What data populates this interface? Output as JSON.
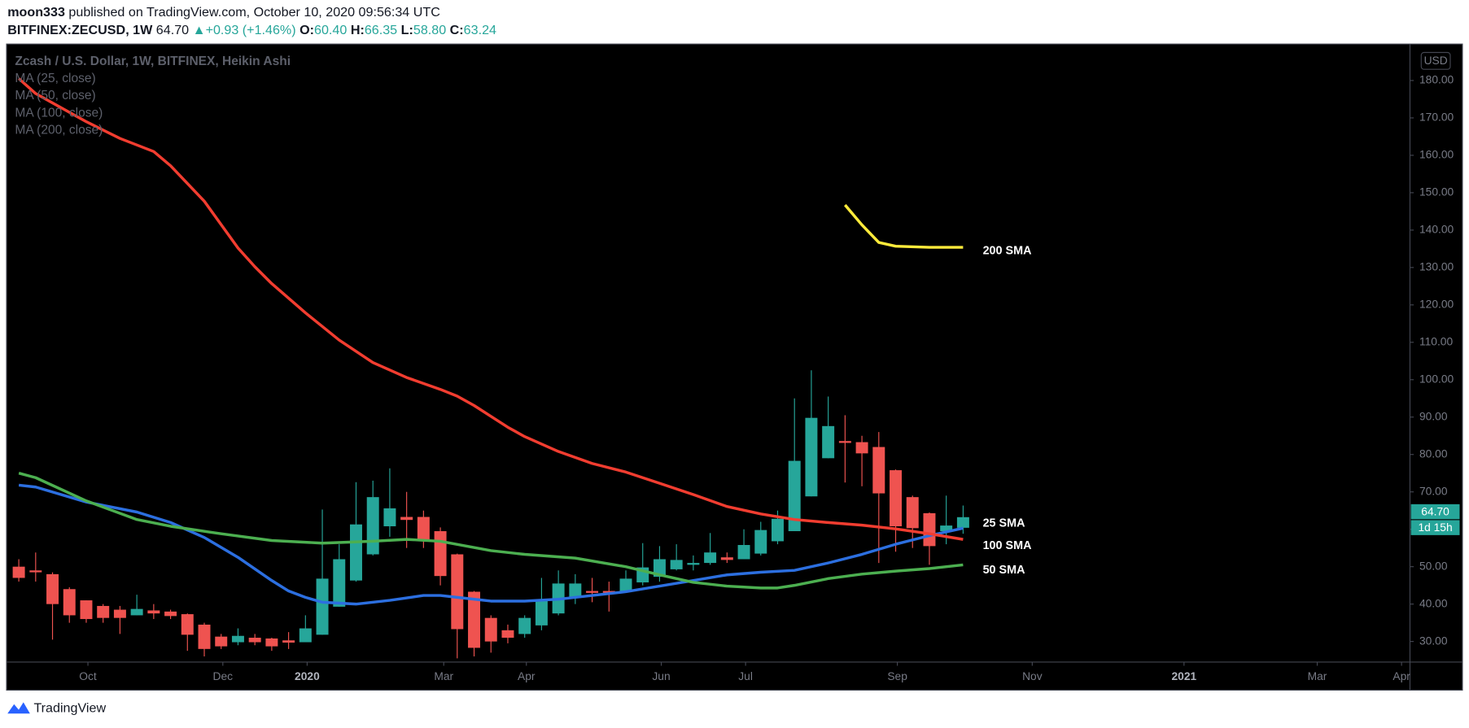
{
  "header": {
    "user": "moon333",
    "published": "published on TradingView.com, October 10, 2020 09:56:34 UTC",
    "symbol": "BITFINEX:ZECUSD, 1W",
    "price": "64.70",
    "change": "+0.93 (+1.46%)",
    "ohlc": [
      {
        "label": "O:",
        "value": "60.40"
      },
      {
        "label": "H:",
        "value": "66.35"
      },
      {
        "label": "L:",
        "value": "58.80"
      },
      {
        "label": "C:",
        "value": "63.24"
      }
    ]
  },
  "footer": {
    "brand": "TradingView"
  },
  "chart_data": {
    "type": "candlestick",
    "title": "Zcash / U.S. Dollar, 1W, BITFINEX, Heikin Ashi",
    "y_unit": "USD",
    "up_color": "#26a69a",
    "down_color": "#ef5350",
    "open": [
      50,
      49,
      48,
      44,
      41,
      39.5,
      38.5,
      37,
      38.3,
      38,
      37.3,
      34.5,
      31.3,
      29.8,
      31,
      30.8,
      30.3,
      29.8,
      31.8,
      39.3,
      46.3,
      53.3,
      60.8,
      63.3,
      63.3,
      59.5,
      53.3,
      43.3,
      36.3,
      33,
      32,
      34.3,
      37.5,
      41.8,
      43.5,
      43.5,
      43.5,
      45.8,
      47.3,
      49.3,
      50.5,
      51,
      52.5,
      52,
      53.5,
      56.8,
      59.5,
      68.8,
      79,
      83.6,
      83.3,
      82,
      75.8,
      68.6,
      64.3,
      59.5,
      60.4
    ],
    "high": [
      52,
      53.8,
      48.5,
      44.5,
      41,
      40,
      39.5,
      42.5,
      40,
      38.5,
      37.5,
      35,
      32,
      33.5,
      32,
      31,
      32.5,
      37,
      65.3,
      56,
      72.6,
      73,
      76.3,
      70,
      65,
      60.5,
      53.5,
      43.5,
      37,
      34.5,
      37,
      47,
      49,
      48,
      47,
      46,
      49,
      56.3,
      55.5,
      56,
      53,
      59,
      53.8,
      60,
      62,
      65,
      95,
      102.5,
      95.5,
      90.5,
      85,
      86,
      76,
      69,
      64.5,
      69,
      66.35
    ],
    "low": [
      46,
      46,
      30.5,
      35,
      35,
      35,
      32,
      37,
      36,
      36,
      27.5,
      26,
      28,
      29,
      29,
      27.5,
      28,
      29.8,
      31.8,
      39.3,
      46,
      53,
      58,
      55,
      55,
      45,
      25.5,
      26,
      27,
      29.5,
      31,
      33,
      37,
      40,
      40.5,
      38,
      43,
      45,
      46,
      49,
      49,
      50.5,
      51,
      52,
      53,
      56,
      59.5,
      68.8,
      79,
      72.5,
      71.5,
      51,
      54,
      55,
      50.5,
      56,
      58.8
    ],
    "close": [
      47,
      48.5,
      40,
      37,
      36,
      36.3,
      36.3,
      38.7,
      37.5,
      36.8,
      31.8,
      28,
      28.7,
      31.5,
      29.8,
      28.7,
      29.7,
      33.5,
      46.8,
      52,
      61.3,
      68.6,
      65.6,
      62.5,
      56.8,
      47.5,
      33.3,
      28.3,
      30,
      31,
      36.3,
      41.3,
      45.5,
      45.5,
      43,
      43,
      46.8,
      49.8,
      52,
      51.8,
      51,
      53.8,
      51.8,
      55.8,
      59.8,
      62.8,
      78.3,
      89.8,
      87.6,
      83.1,
      80.3,
      69.6,
      60.8,
      60.3,
      55.5,
      61,
      63.24
    ],
    "series": [
      {
        "name": "MA (25, close)",
        "label": "25 SMA",
        "color": "#2c6fe0",
        "x": [
          0,
          1,
          4,
          7,
          9,
          11,
          13,
          15,
          16,
          17,
          18,
          20,
          22,
          24,
          25,
          26,
          28,
          30,
          32,
          34,
          36,
          38,
          40,
          42,
          44,
          46,
          48,
          50,
          52,
          54,
          56
        ],
        "values": [
          71.8,
          71.3,
          67.3,
          64.6,
          61.8,
          57.8,
          52.5,
          46.3,
          43.5,
          41.8,
          40.5,
          40,
          41,
          42.3,
          42.3,
          41.8,
          40.8,
          40.8,
          41.3,
          42.3,
          43.3,
          44.8,
          46.3,
          47.8,
          48.5,
          49,
          51,
          53.3,
          56,
          58.3,
          60.3
        ]
      },
      {
        "name": "MA (50, close)",
        "label": "50 SMA",
        "color": "#4caf50",
        "x": [
          0,
          1,
          4,
          7,
          9,
          12,
          15,
          18,
          21,
          23,
          25,
          28,
          30,
          33,
          36,
          38,
          40,
          42,
          44,
          45,
          46,
          48,
          50,
          52,
          54,
          56
        ],
        "values": [
          75,
          73.8,
          67.6,
          62.6,
          60.8,
          58.8,
          57,
          56.3,
          56.8,
          57.3,
          56.8,
          54.3,
          53.3,
          52.3,
          50,
          47.8,
          45.8,
          44.8,
          44.3,
          44.3,
          45,
          46.8,
          48,
          48.8,
          49.5,
          50.5
        ]
      },
      {
        "name": "MA (100, close)",
        "label": "100 SMA",
        "color": "#f23d30",
        "x": [
          0,
          1,
          4,
          6,
          8,
          9,
          11,
          13,
          14,
          15,
          17,
          19,
          21,
          23,
          25,
          26,
          27,
          29,
          30,
          32,
          34,
          36,
          38,
          40,
          42,
          44,
          46,
          48,
          50,
          52,
          54,
          56
        ],
        "values": [
          180.5,
          176.5,
          169,
          164.5,
          161,
          157.2,
          147.7,
          135.2,
          130.2,
          125.7,
          117.9,
          110.6,
          104.6,
          100.6,
          97.4,
          95.6,
          93.1,
          87.3,
          84.8,
          80.8,
          77.6,
          75.3,
          72.3,
          69.3,
          66.1,
          64.1,
          62.6,
          61.8,
          61.1,
          60.1,
          58.8,
          57.3
        ]
      },
      {
        "name": "MA (200, close)",
        "label": "200 SMA",
        "color": "#ffeb3b",
        "x": [
          49,
          50,
          51,
          52,
          54,
          56
        ],
        "values": [
          146.7,
          141.4,
          136.7,
          135.7,
          135.4,
          135.4
        ]
      }
    ],
    "last_price": 64.7,
    "last_price_label": "64.70",
    "countdown": "1d 15h",
    "xlim": [
      -0.67,
      82.5
    ],
    "xticks": [
      {
        "value": 4.1,
        "label": "Oct"
      },
      {
        "value": 12.1,
        "label": "Dec"
      },
      {
        "value": 17.1,
        "label": "2020"
      },
      {
        "value": 25.2,
        "label": "Mar"
      },
      {
        "value": 30.1,
        "label": "Apr"
      },
      {
        "value": 38.1,
        "label": "Jun"
      },
      {
        "value": 43.1,
        "label": "Jul"
      },
      {
        "value": 52.1,
        "label": "Sep"
      },
      {
        "value": 60.1,
        "label": "Nov"
      },
      {
        "value": 69.1,
        "label": "2021"
      },
      {
        "value": 77.0,
        "label": "Mar"
      },
      {
        "value": 82.0,
        "label": "Apr"
      }
    ],
    "ylim": [
      24.5,
      189.5
    ],
    "yticks": [
      {
        "value": 30,
        "label": "30.00"
      },
      {
        "value": 40,
        "label": "40.00"
      },
      {
        "value": 50,
        "label": "50.00"
      },
      {
        "value": 60,
        "label": "60.00"
      },
      {
        "value": 70,
        "label": "70.00"
      },
      {
        "value": 80,
        "label": "80.00"
      },
      {
        "value": 90,
        "label": "90.00"
      },
      {
        "value": 100,
        "label": "100.00"
      },
      {
        "value": 110,
        "label": "110.00"
      },
      {
        "value": 120,
        "label": "120.00"
      },
      {
        "value": 130,
        "label": "130.00"
      },
      {
        "value": 140,
        "label": "140.00"
      },
      {
        "value": 150,
        "label": "150.00"
      },
      {
        "value": 160,
        "label": "160.00"
      },
      {
        "value": 170,
        "label": "170.00"
      },
      {
        "value": 180,
        "label": "180.00"
      }
    ],
    "grid": false
  }
}
